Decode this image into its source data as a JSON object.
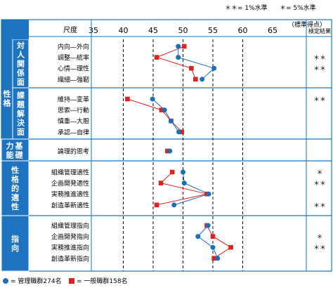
{
  "significance_note": {
    "p1": "＊＊= 1%水準",
    "p5": "＊= 5%水準"
  },
  "header": {
    "scale_label": "尺度",
    "unit_label": "（標準得点）",
    "result_label": "検定結果"
  },
  "legend": {
    "managers": "= 管理職群274名",
    "general": "= 一般職群158名"
  },
  "colors": {
    "section_blue": "#1e73be",
    "section_text": "#ffffff",
    "managers": "#1a6fb8",
    "general": "#dd2222",
    "grid": "#000000",
    "frame": "#1e73be"
  },
  "chart_data": {
    "type": "line",
    "orientation": "horizontal-profile",
    "xlim": [
      30,
      70
    ],
    "xticks": [
      35,
      40,
      45,
      50,
      55,
      60,
      65
    ],
    "grid": "dashed vertical at ticks",
    "series": [
      {
        "name": "管理職群274名",
        "marker": "circle",
        "color": "#1a6fb8"
      },
      {
        "name": "一般職群158名",
        "marker": "square",
        "color": "#dd2222"
      }
    ],
    "groups": [
      {
        "outer": "性格",
        "label": "対人関係面",
        "items": [
          {
            "label": "内向―外向",
            "managers": 49.2,
            "general": 50.2,
            "sig": ""
          },
          {
            "label": "調整―統率",
            "managers": 49.2,
            "general": 45.6,
            "sig": "＊＊"
          },
          {
            "label": "心情―理性",
            "managers": 55.2,
            "general": 51.4,
            "sig": "＊＊"
          },
          {
            "label": "繊細―強靭",
            "managers": 53.2,
            "general": 52.1,
            "sig": ""
          }
        ]
      },
      {
        "outer": "性格",
        "label": "課題解決面",
        "items": [
          {
            "label": "維持―変革",
            "managers": 44.9,
            "general": 40.7,
            "sig": "＊＊"
          },
          {
            "label": "思索―行動",
            "managers": 46.9,
            "general": 46.4,
            "sig": ""
          },
          {
            "label": "慎重―大胆",
            "managers": 48.0,
            "general": 48.0,
            "sig": ""
          },
          {
            "label": "承認―自律",
            "managers": 49.3,
            "general": 49.8,
            "sig": ""
          }
        ]
      },
      {
        "outer": "",
        "label": "基礎能力",
        "items": [
          {
            "label": "論理的思考",
            "managers": 47.8,
            "general": 47.4,
            "sig": ""
          }
        ]
      },
      {
        "outer": "",
        "label": "性格的適性",
        "items": [
          {
            "label": "組織管理適性",
            "managers": 50.0,
            "general": 48.2,
            "sig": "＊"
          },
          {
            "label": "企画開発適性",
            "managers": 50.2,
            "general": 46.3,
            "sig": "＊＊"
          },
          {
            "label": "実務推進適性",
            "managers": 54.3,
            "general": 54.0,
            "sig": ""
          },
          {
            "label": "創造革新適性",
            "managers": 48.5,
            "general": 45.6,
            "sig": "＊＊"
          }
        ]
      },
      {
        "outer": "",
        "label": "指向",
        "items": [
          {
            "label": "組織管理指向",
            "managers": 54.2,
            "general": 54.0,
            "sig": ""
          },
          {
            "label": "企画開発指向",
            "managers": 52.5,
            "general": 55.0,
            "sig": "＊"
          },
          {
            "label": "実務推進指向",
            "managers": 55.0,
            "general": 58.0,
            "sig": "＊＊"
          },
          {
            "label": "創造革新指向",
            "managers": 55.8,
            "general": 55.2,
            "sig": ""
          }
        ]
      }
    ]
  }
}
